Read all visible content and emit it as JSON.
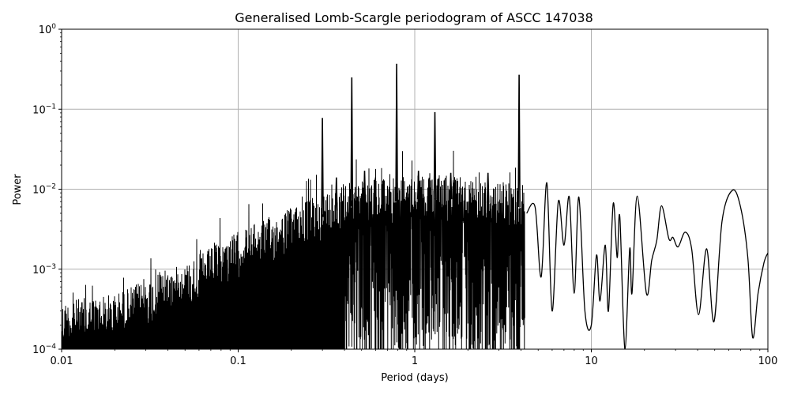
{
  "chart_data": {
    "type": "line",
    "title": "Generalised Lomb-Scargle periodogram of ASCC 147038",
    "xlabel": "Period (days)",
    "ylabel": "Power",
    "xscale": "log",
    "yscale": "log",
    "xlim": [
      0.01,
      100
    ],
    "ylim": [
      0.0001,
      1
    ],
    "grid": true,
    "line_color": "#000000",
    "x_ticks": [
      {
        "value": 0.01,
        "label": "0.01"
      },
      {
        "value": 0.1,
        "label": "0.1"
      },
      {
        "value": 1,
        "label": "1"
      },
      {
        "value": 10,
        "label": "10"
      },
      {
        "value": 100,
        "label": "100"
      }
    ],
    "y_ticks": [
      {
        "value": 0.0001,
        "base": "10",
        "exp": "−4"
      },
      {
        "value": 0.001,
        "base": "10",
        "exp": "−3"
      },
      {
        "value": 0.01,
        "base": "10",
        "exp": "−2"
      },
      {
        "value": 0.1,
        "base": "10",
        "exp": "−1"
      },
      {
        "value": 1,
        "base": "10",
        "exp": "0"
      }
    ],
    "noise_floor": {
      "description": "dense forest of peaks rising from ~3e-4 at 0.01 d to ~1e-2 near 0.3-1 d",
      "envelope": [
        [
          0.01,
          0.0004
        ],
        [
          0.02,
          0.0005
        ],
        [
          0.05,
          0.0012
        ],
        [
          0.1,
          0.003
        ],
        [
          0.2,
          0.006
        ],
        [
          0.4,
          0.012
        ],
        [
          1.0,
          0.015
        ],
        [
          2.0,
          0.015
        ],
        [
          3.5,
          0.012
        ]
      ]
    },
    "peaks": [
      {
        "period": 0.3,
        "power": 0.078
      },
      {
        "period": 0.44,
        "power": 0.25
      },
      {
        "period": 0.79,
        "power": 0.37
      },
      {
        "period": 1.3,
        "power": 0.092
      },
      {
        "period": 3.9,
        "power": 0.27
      },
      {
        "period": 0.36,
        "power": 0.014
      },
      {
        "period": 0.52,
        "power": 0.017
      },
      {
        "period": 1.05,
        "power": 0.017
      },
      {
        "period": 1.6,
        "power": 0.016
      },
      {
        "period": 2.6,
        "power": 0.016
      }
    ],
    "smooth_tail": [
      [
        4.3,
        0.005
      ],
      [
        4.8,
        0.006
      ],
      [
        5.2,
        0.0008
      ],
      [
        5.6,
        0.012
      ],
      [
        6.0,
        0.0003
      ],
      [
        6.5,
        0.007
      ],
      [
        7.0,
        0.002
      ],
      [
        7.5,
        0.008
      ],
      [
        8.0,
        0.0005
      ],
      [
        8.5,
        0.008
      ],
      [
        9.2,
        0.0003
      ],
      [
        10.0,
        0.0002
      ],
      [
        10.7,
        0.0015
      ],
      [
        11.2,
        0.0004
      ],
      [
        12.0,
        0.002
      ],
      [
        12.5,
        0.0003
      ],
      [
        13.3,
        0.0066
      ],
      [
        14.0,
        0.0014
      ],
      [
        14.5,
        0.0045
      ],
      [
        15.5,
        0.0001
      ],
      [
        16.5,
        0.0018
      ],
      [
        17.0,
        0.0005
      ],
      [
        18.2,
        0.0082
      ],
      [
        20.5,
        0.0005
      ],
      [
        22.0,
        0.0013
      ],
      [
        23.5,
        0.0023
      ],
      [
        25.0,
        0.0062
      ],
      [
        27.5,
        0.0024
      ],
      [
        29.0,
        0.0025
      ],
      [
        31.0,
        0.0019
      ],
      [
        34.0,
        0.0029
      ],
      [
        37.0,
        0.0018
      ],
      [
        40.5,
        0.00027
      ],
      [
        45.0,
        0.0018
      ],
      [
        49.5,
        0.00022
      ],
      [
        55.0,
        0.004
      ],
      [
        63.0,
        0.0097
      ],
      [
        70.0,
        0.006
      ],
      [
        77.0,
        0.0014
      ],
      [
        82.0,
        0.00014
      ],
      [
        88.0,
        0.0005
      ],
      [
        95.0,
        0.0012
      ],
      [
        100.0,
        0.0016
      ]
    ]
  }
}
